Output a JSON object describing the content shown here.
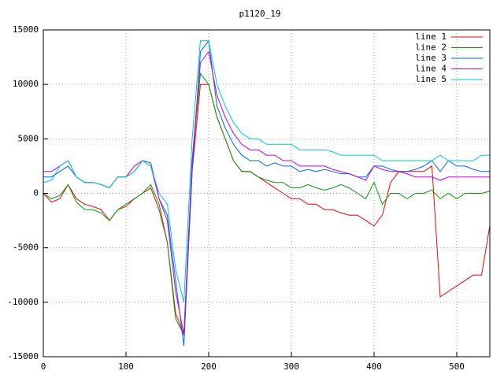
{
  "chart_data": {
    "type": "line",
    "title": "p1120_19",
    "x": [
      0,
      10,
      20,
      30,
      40,
      50,
      60,
      70,
      80,
      90,
      100,
      110,
      120,
      130,
      140,
      150,
      160,
      170,
      180,
      190,
      200,
      210,
      220,
      230,
      240,
      250,
      260,
      270,
      280,
      290,
      300,
      310,
      320,
      330,
      340,
      350,
      360,
      370,
      380,
      390,
      400,
      410,
      420,
      430,
      440,
      450,
      460,
      470,
      480,
      490,
      500,
      510,
      520,
      530,
      540
    ],
    "series": [
      {
        "name": "line 1",
        "color": "#ff0000",
        "values": [
          0,
          -800,
          -500,
          800,
          -500,
          -1000,
          -1200,
          -1500,
          -2500,
          -1500,
          -1200,
          -500,
          0,
          500,
          -1500,
          -4500,
          -11000,
          -13000,
          2000,
          10000,
          10000,
          7000,
          5000,
          3000,
          2000,
          2000,
          1500,
          1000,
          500,
          0,
          -500,
          -500,
          -1000,
          -1000,
          -1500,
          -1500,
          -1800,
          -2000,
          -2000,
          -2500,
          -3000,
          -2000,
          1000,
          2000,
          2000,
          2000,
          2000,
          2500,
          -9500,
          -9000,
          -8500,
          -8000,
          -7500,
          -7500,
          -3000
        ]
      },
      {
        "name": "line 2",
        "color": "#00a000",
        "values": [
          0,
          -500,
          -200,
          800,
          -800,
          -1500,
          -1500,
          -1800,
          -2500,
          -1500,
          -1000,
          -500,
          0,
          800,
          -1000,
          -4500,
          -11500,
          -13000,
          3000,
          11000,
          10000,
          7000,
          5000,
          3000,
          2000,
          2000,
          1500,
          1200,
          1000,
          1000,
          500,
          500,
          800,
          500,
          300,
          500,
          800,
          500,
          0,
          -500,
          1000,
          -1000,
          0,
          0,
          -500,
          0,
          0,
          300,
          -500,
          0,
          -500,
          0,
          0,
          0,
          200
        ]
      },
      {
        "name": "line 3",
        "color": "#0066ff",
        "values": [
          1500,
          1500,
          2000,
          2500,
          1500,
          1000,
          1000,
          800,
          500,
          1500,
          1500,
          2000,
          3000,
          2800,
          -500,
          -2000,
          -8000,
          -14000,
          2000,
          13000,
          14000,
          8000,
          6000,
          4500,
          3500,
          3000,
          3000,
          2500,
          2800,
          2500,
          2500,
          2000,
          2200,
          2000,
          2200,
          2000,
          1800,
          1800,
          1500,
          1500,
          2500,
          2500,
          2200,
          2000,
          2000,
          2200,
          2500,
          3000,
          2000,
          3000,
          2500,
          2500,
          2200,
          2000,
          2000
        ]
      },
      {
        "name": "line 4",
        "color": "#cc00cc",
        "values": [
          2000,
          2000,
          2500,
          3000,
          1500,
          1000,
          1000,
          800,
          500,
          1500,
          1500,
          2500,
          3000,
          2500,
          -500,
          -2500,
          -9000,
          -13000,
          3000,
          12000,
          13000,
          9000,
          7000,
          5500,
          4500,
          4000,
          4000,
          3500,
          3500,
          3000,
          3000,
          2500,
          2500,
          2500,
          2500,
          2200,
          2000,
          1800,
          1500,
          1200,
          2500,
          2200,
          2000,
          2000,
          1800,
          1500,
          1500,
          1500,
          1200,
          1500,
          1500,
          1500,
          1500,
          1500,
          1500
        ]
      },
      {
        "name": "line 5",
        "color": "#00cccc",
        "values": [
          1000,
          1200,
          2500,
          3000,
          1500,
          1000,
          1000,
          800,
          500,
          1500,
          1500,
          2000,
          3000,
          2500,
          0,
          -1000,
          -7000,
          -10000,
          5000,
          14000,
          14000,
          10000,
          8000,
          6500,
          5500,
          5000,
          5000,
          4500,
          4500,
          4500,
          4500,
          4000,
          4000,
          4000,
          4000,
          3800,
          3500,
          3500,
          3500,
          3500,
          3500,
          3000,
          3000,
          3000,
          3000,
          3000,
          3000,
          3000,
          3500,
          3000,
          3000,
          3000,
          3000,
          3500,
          3500
        ]
      }
    ],
    "xlim": [
      0,
      540
    ],
    "ylim": [
      -15000,
      15000
    ],
    "xticks": [
      0,
      100,
      200,
      300,
      400,
      500
    ],
    "yticks": [
      -15000,
      -10000,
      -5000,
      0,
      5000,
      10000,
      15000
    ],
    "grid": true,
    "legend": "top-right"
  }
}
